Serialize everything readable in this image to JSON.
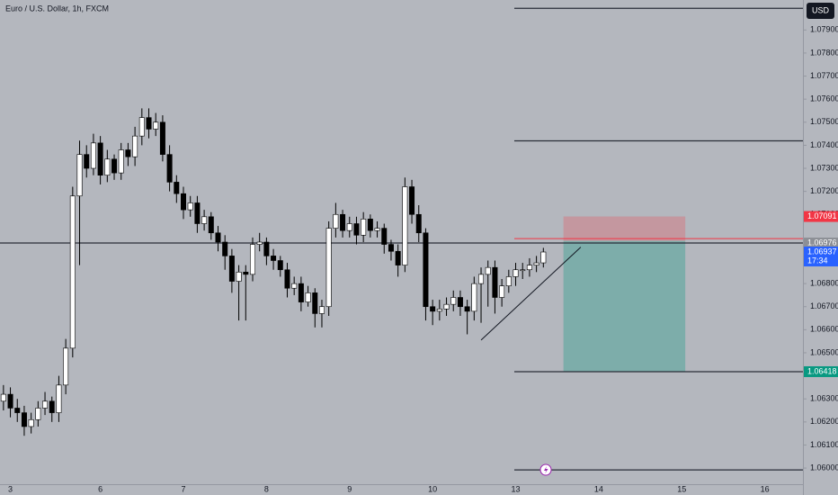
{
  "chart_data": {
    "type": "candlestick",
    "title": "Euro / U.S. Dollar, 1h, FXCM",
    "currency": "USD",
    "up_color": "#ffffff",
    "down_color": "#000000",
    "xlim": [
      0,
      116
    ],
    "xticks": [
      {
        "value": 1.5,
        "label": "3"
      },
      {
        "value": 14.5,
        "label": "6"
      },
      {
        "value": 26.5,
        "label": "7"
      },
      {
        "value": 38.5,
        "label": "8"
      },
      {
        "value": 50.5,
        "label": "9"
      },
      {
        "value": 62.5,
        "label": "10"
      },
      {
        "value": 74.5,
        "label": "13"
      },
      {
        "value": 86.5,
        "label": "14"
      },
      {
        "value": 98.5,
        "label": "15"
      },
      {
        "value": 110.5,
        "label": "16"
      }
    ],
    "ylim": [
      1.0593,
      1.0803
    ],
    "yticks": [
      {
        "value": 1.079,
        "label": "1.07900"
      },
      {
        "value": 1.078,
        "label": "1.07800"
      },
      {
        "value": 1.077,
        "label": "1.07700"
      },
      {
        "value": 1.076,
        "label": "1.07600"
      },
      {
        "value": 1.075,
        "label": "1.07500"
      },
      {
        "value": 1.074,
        "label": "1.07400"
      },
      {
        "value": 1.073,
        "label": "1.07300"
      },
      {
        "value": 1.072,
        "label": "1.07200"
      },
      {
        "value": 1.071,
        "label": "1.07100"
      },
      {
        "value": 1.068,
        "label": "1.06800"
      },
      {
        "value": 1.067,
        "label": "1.06700"
      },
      {
        "value": 1.066,
        "label": "1.06600"
      },
      {
        "value": 1.065,
        "label": "1.06500"
      },
      {
        "value": 1.063,
        "label": "1.06300"
      },
      {
        "value": 1.062,
        "label": "1.06200"
      },
      {
        "value": 1.061,
        "label": "1.06100"
      },
      {
        "value": 1.06,
        "label": "1.06000"
      }
    ],
    "open": [
      1.0629,
      1.0632,
      1.0626,
      1.0624,
      1.0618,
      1.0621,
      1.0626,
      1.0629,
      1.0624,
      1.0636,
      1.0652,
      1.0718,
      1.0736,
      1.073,
      1.0741,
      1.0727,
      1.0734,
      1.0728,
      1.0738,
      1.0735,
      1.0744,
      1.0752,
      1.0747,
      1.075,
      1.0736,
      1.0724,
      1.0719,
      1.0712,
      1.0715,
      1.0706,
      1.0709,
      1.0702,
      1.0698,
      1.0692,
      1.0681,
      1.0685,
      1.0684,
      1.0697,
      1.0698,
      1.0692,
      1.069,
      1.0686,
      1.0678,
      1.068,
      1.0672,
      1.0676,
      1.0667,
      1.067,
      1.0704,
      1.071,
      1.0703,
      1.0706,
      1.0701,
      1.0708,
      1.0703,
      1.0704,
      1.0697,
      1.0694,
      1.0688,
      1.0722,
      1.071,
      1.0702,
      1.067,
      1.0668,
      1.0669,
      1.0671,
      1.0674,
      1.067,
      1.0668,
      1.068,
      1.0684,
      1.0687,
      1.0674,
      1.0679,
      1.0683,
      1.0686,
      1.0686,
      1.0688,
      1.0689
    ],
    "high": [
      1.0636,
      1.0635,
      1.063,
      1.0627,
      1.0624,
      1.0629,
      1.0633,
      1.0631,
      1.064,
      1.0656,
      1.0722,
      1.0742,
      1.074,
      1.0745,
      1.0744,
      1.0738,
      1.0736,
      1.0741,
      1.0741,
      1.0748,
      1.0756,
      1.0756,
      1.0754,
      1.0753,
      1.074,
      1.0727,
      1.0722,
      1.0718,
      1.0718,
      1.0712,
      1.0711,
      1.0705,
      1.0701,
      1.0695,
      1.0688,
      1.0688,
      1.07,
      1.0702,
      1.07,
      1.0695,
      1.0692,
      1.0689,
      1.0683,
      1.0683,
      1.0679,
      1.0678,
      1.0673,
      1.0707,
      1.0715,
      1.0712,
      1.0709,
      1.0709,
      1.0711,
      1.071,
      1.0707,
      1.0706,
      1.0699,
      1.0697,
      1.0726,
      1.0725,
      1.0714,
      1.0704,
      1.0673,
      1.0673,
      1.0674,
      1.0677,
      1.0677,
      1.0673,
      1.0683,
      1.0687,
      1.069,
      1.069,
      1.0682,
      1.0686,
      1.0689,
      1.0689,
      1.0691,
      1.0692,
      1.06955
    ],
    "low": [
      1.0625,
      1.0622,
      1.062,
      1.0614,
      1.0615,
      1.0618,
      1.0623,
      1.062,
      1.062,
      1.0632,
      1.0648,
      1.0688,
      1.0726,
      1.0727,
      1.0723,
      1.0724,
      1.0725,
      1.0725,
      1.0731,
      1.0731,
      1.074,
      1.0743,
      1.0744,
      1.0733,
      1.072,
      1.0715,
      1.0708,
      1.0709,
      1.0702,
      1.0703,
      1.0699,
      1.0694,
      1.0686,
      1.0676,
      1.0664,
      1.0664,
      1.0681,
      1.0694,
      1.0688,
      1.0686,
      1.0683,
      1.0674,
      1.0675,
      1.0668,
      1.067,
      1.0661,
      1.0661,
      1.0666,
      1.07,
      1.07,
      1.07,
      1.0697,
      1.0698,
      1.07,
      1.07,
      1.0693,
      1.069,
      1.0683,
      1.0685,
      1.0706,
      1.0698,
      1.0664,
      1.0662,
      1.0664,
      1.0666,
      1.0668,
      1.0666,
      1.0658,
      1.0664,
      1.0663,
      1.067,
      1.0667,
      1.067,
      1.0676,
      1.0679,
      1.0682,
      1.0683,
      1.0685,
      1.0687
    ],
    "close": [
      1.0632,
      1.0626,
      1.0624,
      1.0618,
      1.0621,
      1.0626,
      1.0629,
      1.0624,
      1.0636,
      1.0652,
      1.0718,
      1.0736,
      1.073,
      1.0741,
      1.0727,
      1.0734,
      1.0728,
      1.0738,
      1.0735,
      1.0744,
      1.0752,
      1.0747,
      1.075,
      1.0736,
      1.0724,
      1.0719,
      1.0712,
      1.0715,
      1.0706,
      1.0709,
      1.0702,
      1.0698,
      1.0692,
      1.0681,
      1.0685,
      1.0684,
      1.0697,
      1.0698,
      1.0692,
      1.069,
      1.0686,
      1.0678,
      1.068,
      1.0672,
      1.0676,
      1.0667,
      1.067,
      1.0704,
      1.071,
      1.0703,
      1.0706,
      1.0701,
      1.0708,
      1.0703,
      1.0704,
      1.0697,
      1.0694,
      1.0688,
      1.0722,
      1.071,
      1.0702,
      1.067,
      1.0668,
      1.0669,
      1.0671,
      1.0674,
      1.067,
      1.0668,
      1.068,
      1.0684,
      1.0687,
      1.0674,
      1.0679,
      1.0683,
      1.0686,
      1.0686,
      1.0688,
      1.0689,
      1.06937
    ],
    "hlines": [
      1.07994,
      1.07419,
      1.06418,
      1.05992
    ],
    "hline_start": 74.3,
    "last_price_line": 1.06976,
    "entry_line": 1.06995,
    "position": {
      "start": 81.4,
      "end": 99.0,
      "stop": 1.07091,
      "entry": 1.06985,
      "target": 1.06418
    },
    "trend_line": {
      "x": [
        69.5,
        83.9
      ],
      "y": [
        1.06555,
        1.06958
      ]
    },
    "price_labels": [
      {
        "value": 1.07091,
        "label": "1.07091",
        "color": "#f23645"
      },
      {
        "value": 1.06976,
        "label": "1.06976",
        "color": "#8c8f96"
      },
      {
        "value": 1.06937,
        "label": "1.06937",
        "color": "#2962ff",
        "countdown": "17:34"
      },
      {
        "value": 1.06418,
        "label": "1.06418",
        "color": "#089981"
      }
    ]
  }
}
